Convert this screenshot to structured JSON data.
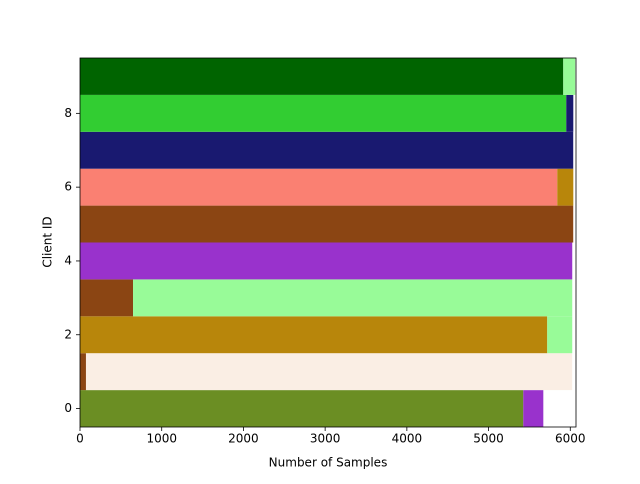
{
  "chart_data": {
    "type": "stacked-barh",
    "xlabel": "Number of Samples",
    "ylabel": "Client ID",
    "categories": [
      0,
      1,
      2,
      3,
      4,
      5,
      6,
      7,
      8,
      9
    ],
    "series": [
      {
        "colors": [
          "#6b8e23",
          "#8b4513",
          "#b8860b",
          "#8b4513",
          "#9932cc",
          "#8b4513",
          "#fa8072",
          "#191970",
          "#32cd32",
          "#006400"
        ],
        "values": [
          5425,
          73,
          5718,
          649,
          6024,
          6036,
          5841,
          6036,
          5951,
          5914
        ]
      },
      {
        "colors": [
          "#9932cc",
          "#faeee4",
          "#98fb98",
          "#98fb98",
          null,
          null,
          "#b8860b",
          null,
          "#191970",
          "#98fb98"
        ],
        "values": [
          245,
          5950,
          306,
          5375,
          null,
          null,
          196,
          null,
          86,
          147
        ]
      }
    ],
    "xlim": [
      0,
      6070
    ],
    "xticks": [
      0,
      1000,
      2000,
      3000,
      4000,
      5000,
      6000
    ],
    "ylim": [
      -0.5,
      9.5
    ],
    "yticks": [
      0,
      2,
      4,
      6,
      8
    ]
  }
}
